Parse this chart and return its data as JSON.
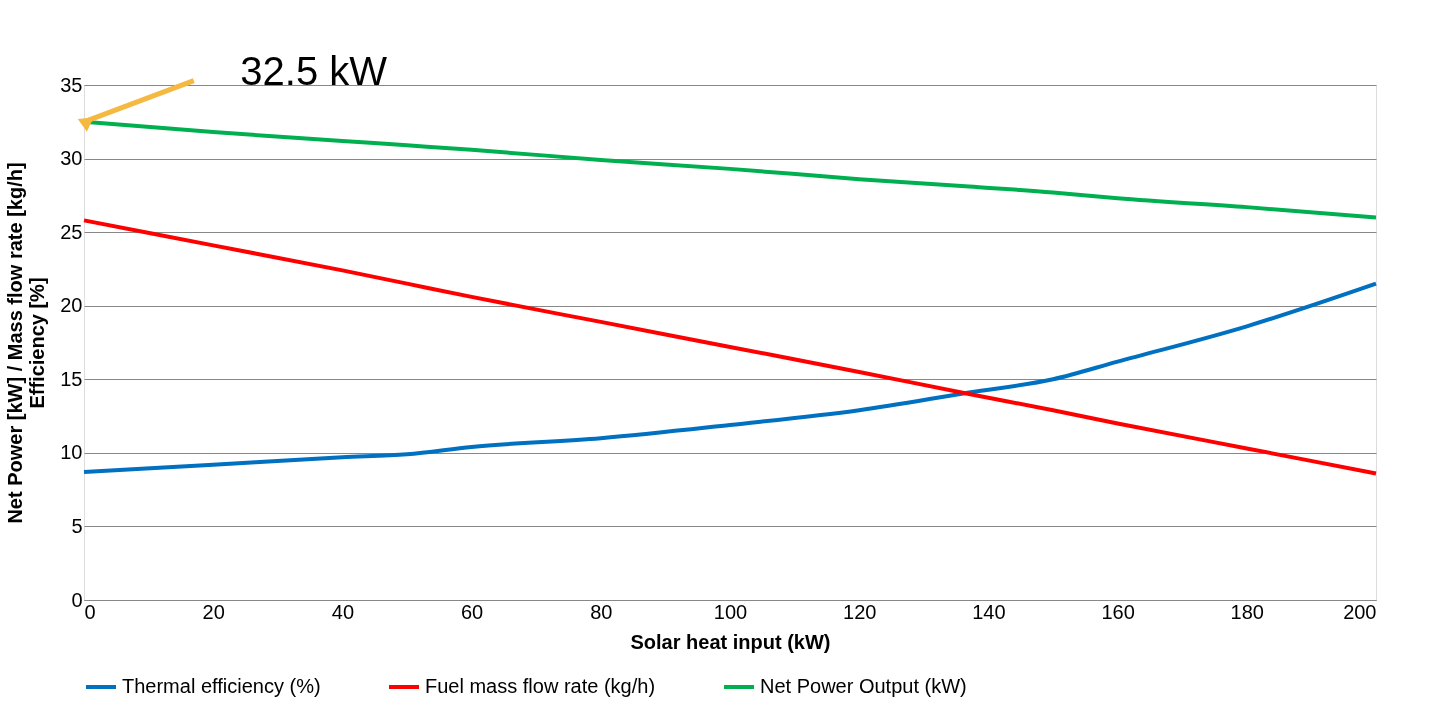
{
  "chart_data": {
    "type": "line",
    "xlabel": "Solar heat input (kW)",
    "ylabel": "Net Power [kW] / Mass flow rate [kg/h]\nEfficiency [%]",
    "x": [
      0,
      20,
      40,
      50,
      60,
      80,
      100,
      120,
      137,
      150,
      160,
      180,
      200
    ],
    "xlim": [
      0,
      200
    ],
    "xticks": [
      0,
      20,
      40,
      60,
      80,
      100,
      120,
      140,
      160,
      180,
      200
    ],
    "ylim": [
      0,
      35
    ],
    "yticks": [
      0,
      5,
      10,
      15,
      20,
      25,
      30,
      35
    ],
    "series": [
      {
        "name": "Thermal efficiency (%)",
        "color": "#0070c0",
        "values": [
          8.7,
          9.2,
          9.7,
          9.9,
          10.4,
          11,
          11.9,
          12.9,
          14.1,
          15,
          16.2,
          18.6,
          21.5
        ]
      },
      {
        "name": "Fuel mass flow rate (kg/h)",
        "color": "#ff0000",
        "values": [
          25.8,
          24.1,
          22.4,
          21.5,
          20.6,
          18.9,
          17.2,
          15.5,
          14.0,
          12.9,
          12.0,
          10.3,
          8.6
        ]
      },
      {
        "name": "Net Power Output (kW)",
        "color": "#00b050",
        "values": [
          32.5,
          31.8,
          31.2,
          30.9,
          30.6,
          29.9,
          29.3,
          28.6,
          28.1,
          27.7,
          27.3,
          26.7,
          26.0
        ]
      }
    ],
    "annotations": [
      {
        "text": "32.5 kW",
        "x": 0,
        "y": 32.5
      }
    ],
    "grid": "y",
    "legend": "bottom",
    "marker": "none",
    "line_style": "solid"
  }
}
